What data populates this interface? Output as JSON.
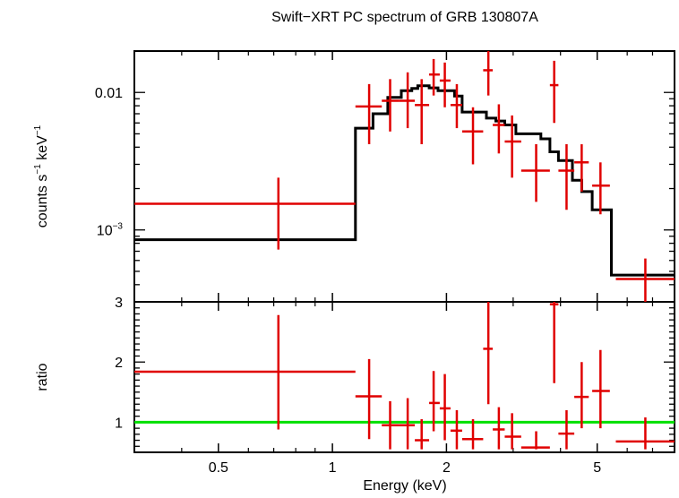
{
  "title": "Swift−XRT PC spectrum of GRB 130807A",
  "colors": {
    "data": "#e00000",
    "model": "#000000",
    "ratio_line": "#00e000",
    "axis": "#000000"
  },
  "chart_data": [
    {
      "type": "scatter",
      "panel": "spectrum",
      "title": "Swift−XRT PC spectrum of GRB 130807A",
      "ylabel_parts": [
        "counts s",
        "−1",
        " keV",
        "−1"
      ],
      "xscale": "log",
      "yscale": "log",
      "xlim": [
        0.3,
        8.0
      ],
      "ylim": [
        0.0003,
        0.02
      ],
      "yticks": [
        {
          "value": 0.01,
          "label": "0.01"
        },
        {
          "value": 0.001,
          "label": "10",
          "sup": "−3"
        }
      ],
      "series": [
        {
          "kind": "data",
          "points": [
            {
              "x": 0.72,
              "xlo": 0.3,
              "xhi": 1.15,
              "y": 0.00155,
              "ylo": 0.00072,
              "yhi": 0.0024
            },
            {
              "x": 1.25,
              "xlo": 1.15,
              "xhi": 1.35,
              "y": 0.0079,
              "ylo": 0.0042,
              "yhi": 0.0115
            },
            {
              "x": 1.42,
              "xlo": 1.35,
              "xhi": 1.5,
              "y": 0.0087,
              "ylo": 0.0052,
              "yhi": 0.0125
            },
            {
              "x": 1.58,
              "xlo": 1.5,
              "xhi": 1.65,
              "y": 0.0087,
              "ylo": 0.0055,
              "yhi": 0.014
            },
            {
              "x": 1.72,
              "xlo": 1.65,
              "xhi": 1.8,
              "y": 0.0081,
              "ylo": 0.0042,
              "yhi": 0.0125
            },
            {
              "x": 1.85,
              "xlo": 1.8,
              "xhi": 1.92,
              "y": 0.0135,
              "ylo": 0.0095,
              "yhi": 0.0175
            },
            {
              "x": 1.98,
              "xlo": 1.92,
              "xhi": 2.05,
              "y": 0.0122,
              "ylo": 0.0078,
              "yhi": 0.0165
            },
            {
              "x": 2.13,
              "xlo": 2.05,
              "xhi": 2.2,
              "y": 0.0081,
              "ylo": 0.0055,
              "yhi": 0.0115
            },
            {
              "x": 2.35,
              "xlo": 2.2,
              "xhi": 2.5,
              "y": 0.0052,
              "ylo": 0.003,
              "yhi": 0.0078
            },
            {
              "x": 2.58,
              "xlo": 2.5,
              "xhi": 2.65,
              "y": 0.0145,
              "ylo": 0.0095,
              "yhi": 0.02
            },
            {
              "x": 2.75,
              "xlo": 2.65,
              "xhi": 2.85,
              "y": 0.0058,
              "ylo": 0.0036,
              "yhi": 0.0082
            },
            {
              "x": 2.98,
              "xlo": 2.85,
              "xhi": 3.15,
              "y": 0.0044,
              "ylo": 0.0024,
              "yhi": 0.0068
            },
            {
              "x": 3.45,
              "xlo": 3.15,
              "xhi": 3.75,
              "y": 0.0027,
              "ylo": 0.0016,
              "yhi": 0.0042
            },
            {
              "x": 3.85,
              "xlo": 3.75,
              "xhi": 3.95,
              "y": 0.0113,
              "ylo": 0.006,
              "yhi": 0.017
            },
            {
              "x": 4.15,
              "xlo": 3.95,
              "xhi": 4.35,
              "y": 0.0027,
              "ylo": 0.0014,
              "yhi": 0.0042
            },
            {
              "x": 4.55,
              "xlo": 4.35,
              "xhi": 4.75,
              "y": 0.0031,
              "ylo": 0.0019,
              "yhi": 0.0042
            },
            {
              "x": 5.1,
              "xlo": 4.85,
              "xhi": 5.4,
              "y": 0.0021,
              "ylo": 0.0013,
              "yhi": 0.0031
            },
            {
              "x": 6.7,
              "xlo": 5.6,
              "xhi": 8.0,
              "y": 0.00044,
              "ylo": 0.0003,
              "yhi": 0.00062
            }
          ]
        },
        {
          "kind": "model",
          "steps": [
            {
              "x0": 0.3,
              "x1": 1.15,
              "y": 0.00085
            },
            {
              "x0": 1.15,
              "x1": 1.28,
              "y": 0.0055
            },
            {
              "x0": 1.28,
              "x1": 1.4,
              "y": 0.007
            },
            {
              "x0": 1.4,
              "x1": 1.52,
              "y": 0.0092
            },
            {
              "x0": 1.52,
              "x1": 1.62,
              "y": 0.0103
            },
            {
              "x0": 1.62,
              "x1": 1.68,
              "y": 0.0107
            },
            {
              "x0": 1.68,
              "x1": 1.8,
              "y": 0.0112
            },
            {
              "x0": 1.8,
              "x1": 1.9,
              "y": 0.0108
            },
            {
              "x0": 1.9,
              "x1": 2.1,
              "y": 0.0103
            },
            {
              "x0": 2.1,
              "x1": 2.2,
              "y": 0.0094
            },
            {
              "x0": 2.2,
              "x1": 2.55,
              "y": 0.0072
            },
            {
              "x0": 2.55,
              "x1": 2.7,
              "y": 0.0065
            },
            {
              "x0": 2.7,
              "x1": 2.85,
              "y": 0.0062
            },
            {
              "x0": 2.85,
              "x1": 3.05,
              "y": 0.0058
            },
            {
              "x0": 3.05,
              "x1": 3.55,
              "y": 0.005
            },
            {
              "x0": 3.55,
              "x1": 3.75,
              "y": 0.0046
            },
            {
              "x0": 3.75,
              "x1": 3.95,
              "y": 0.0037
            },
            {
              "x0": 3.95,
              "x1": 4.3,
              "y": 0.0032
            },
            {
              "x0": 4.3,
              "x1": 4.55,
              "y": 0.0023
            },
            {
              "x0": 4.55,
              "x1": 4.85,
              "y": 0.0019
            },
            {
              "x0": 4.85,
              "x1": 5.45,
              "y": 0.0014
            },
            {
              "x0": 5.45,
              "x1": 8.0,
              "y": 0.00047
            }
          ]
        }
      ]
    },
    {
      "type": "scatter",
      "panel": "ratio",
      "xlabel": "Energy (keV)",
      "ylabel": "ratio",
      "xscale": "log",
      "yscale": "linear",
      "xlim": [
        0.3,
        8.0
      ],
      "ylim": [
        0.5,
        3.0
      ],
      "xticks": [
        {
          "value": 0.5,
          "label": "0.5"
        },
        {
          "value": 1,
          "label": "1"
        },
        {
          "value": 2,
          "label": "2"
        },
        {
          "value": 5,
          "label": "5"
        }
      ],
      "yticks": [
        {
          "value": 1,
          "label": "1"
        },
        {
          "value": 2,
          "label": "2"
        },
        {
          "value": 3,
          "label": "3"
        }
      ],
      "reference_line": 1.0,
      "points": [
        {
          "x": 0.72,
          "xlo": 0.3,
          "xhi": 1.15,
          "y": 1.84,
          "ylo": 0.88,
          "yhi": 2.78
        },
        {
          "x": 1.25,
          "xlo": 1.15,
          "xhi": 1.35,
          "y": 1.43,
          "ylo": 0.72,
          "yhi": 2.05
        },
        {
          "x": 1.42,
          "xlo": 1.35,
          "xhi": 1.5,
          "y": 0.95,
          "ylo": 0.55,
          "yhi": 1.35
        },
        {
          "x": 1.58,
          "xlo": 1.5,
          "xhi": 1.65,
          "y": 0.95,
          "ylo": 0.55,
          "yhi": 1.4
        },
        {
          "x": 1.72,
          "xlo": 1.65,
          "xhi": 1.8,
          "y": 0.7,
          "ylo": 0.55,
          "yhi": 1.05
        },
        {
          "x": 1.85,
          "xlo": 1.8,
          "xhi": 1.92,
          "y": 1.32,
          "ylo": 0.85,
          "yhi": 1.85
        },
        {
          "x": 1.98,
          "xlo": 1.92,
          "xhi": 2.05,
          "y": 1.23,
          "ylo": 0.7,
          "yhi": 1.8
        },
        {
          "x": 2.13,
          "xlo": 2.05,
          "xhi": 2.2,
          "y": 0.86,
          "ylo": 0.55,
          "yhi": 1.2
        },
        {
          "x": 2.35,
          "xlo": 2.2,
          "xhi": 2.5,
          "y": 0.72,
          "ylo": 0.55,
          "yhi": 1.05
        },
        {
          "x": 2.58,
          "xlo": 2.5,
          "xhi": 2.65,
          "y": 2.22,
          "ylo": 1.3,
          "yhi": 3.0
        },
        {
          "x": 2.75,
          "xlo": 2.65,
          "xhi": 2.85,
          "y": 0.88,
          "ylo": 0.55,
          "yhi": 1.25
        },
        {
          "x": 2.98,
          "xlo": 2.85,
          "xhi": 3.15,
          "y": 0.76,
          "ylo": 0.55,
          "yhi": 1.15
        },
        {
          "x": 3.45,
          "xlo": 3.15,
          "xhi": 3.75,
          "y": 0.58,
          "ylo": 0.55,
          "yhi": 0.85
        },
        {
          "x": 3.85,
          "xlo": 3.75,
          "xhi": 3.95,
          "y": 2.96,
          "ylo": 1.65,
          "yhi": 3.0
        },
        {
          "x": 4.15,
          "xlo": 3.95,
          "xhi": 4.35,
          "y": 0.81,
          "ylo": 0.55,
          "yhi": 1.2
        },
        {
          "x": 4.55,
          "xlo": 4.35,
          "xhi": 4.75,
          "y": 1.42,
          "ylo": 0.9,
          "yhi": 2.0
        },
        {
          "x": 5.1,
          "xlo": 4.85,
          "xhi": 5.4,
          "y": 1.52,
          "ylo": 0.9,
          "yhi": 2.2
        },
        {
          "x": 6.7,
          "xlo": 5.6,
          "xhi": 8.0,
          "y": 0.68,
          "ylo": 0.55,
          "yhi": 1.08
        }
      ]
    }
  ]
}
